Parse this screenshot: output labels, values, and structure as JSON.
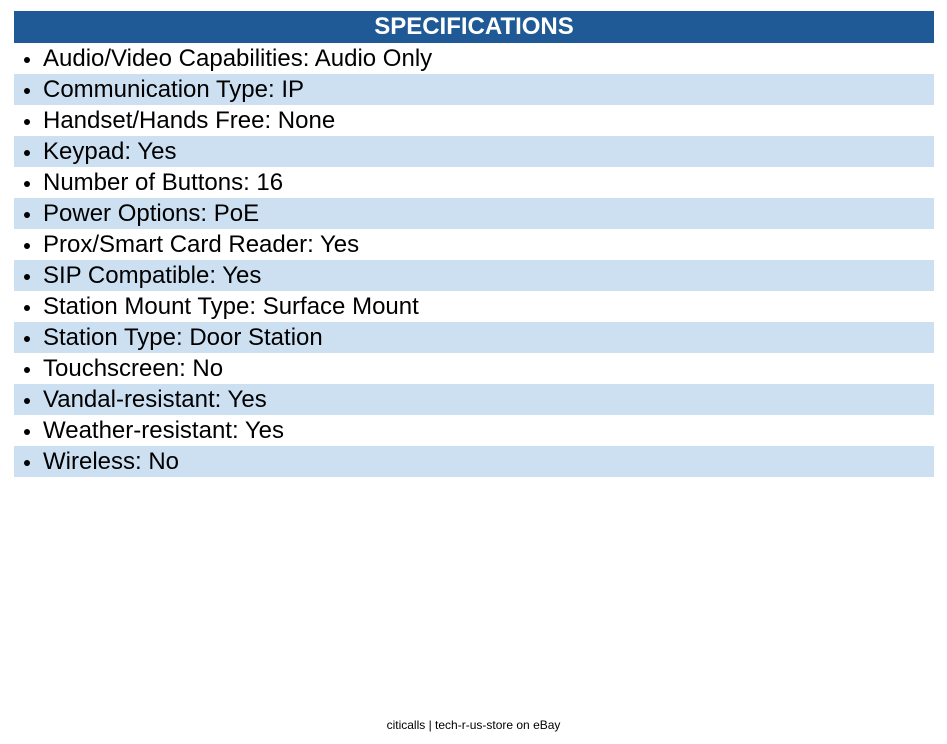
{
  "header": {
    "title": "SPECIFICATIONS"
  },
  "items": [
    "Audio/Video Capabilities: Audio Only",
    "Communication Type: IP",
    "Handset/Hands Free: None",
    "Keypad: Yes",
    "Number of Buttons: 16",
    "Power Options: PoE",
    "Prox/Smart Card Reader: Yes",
    "SIP Compatible: Yes",
    "Station Mount Type: Surface Mount",
    "Station Type: Door Station",
    "Touchscreen: No",
    "Vandal-resistant: Yes",
    "Weather-resistant: Yes",
    "Wireless: No"
  ],
  "footer": "citicalls | tech-r-us-store on eBay"
}
